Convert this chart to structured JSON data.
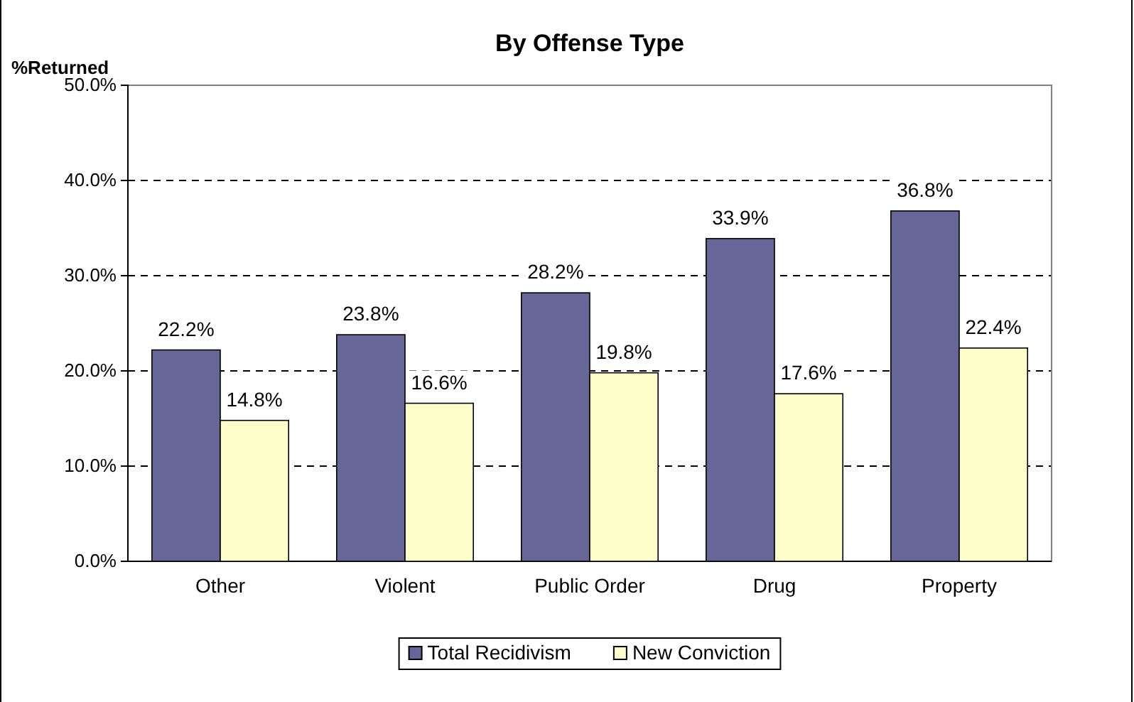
{
  "chart_data": {
    "type": "bar",
    "title": "By Offense Type",
    "ylabel": "%Returned",
    "categories": [
      "Other",
      "Violent",
      "Public Order",
      "Drug",
      "Property"
    ],
    "series": [
      {
        "name": "Total Recidivism",
        "color": "#666699",
        "values": [
          22.2,
          23.8,
          28.2,
          33.9,
          36.8
        ],
        "value_labels": [
          "22.2%",
          "23.8%",
          "28.2%",
          "33.9%",
          "36.8%"
        ]
      },
      {
        "name": "New Conviction",
        "color": "#ffffcc",
        "values": [
          14.8,
          16.6,
          19.8,
          17.6,
          22.4
        ],
        "value_labels": [
          "14.8%",
          "16.6%",
          "19.8%",
          "17.6%",
          "22.4%"
        ]
      }
    ],
    "ylim": [
      0,
      50
    ],
    "yticks": [
      {
        "value": 0,
        "label": "0.0%"
      },
      {
        "value": 10,
        "label": "10.0%"
      },
      {
        "value": 20,
        "label": "20.0%"
      },
      {
        "value": 30,
        "label": "30.0%"
      },
      {
        "value": 40,
        "label": "40.0%"
      },
      {
        "value": 50,
        "label": "50.0%"
      }
    ],
    "grid": "y",
    "legend": "bottom"
  }
}
